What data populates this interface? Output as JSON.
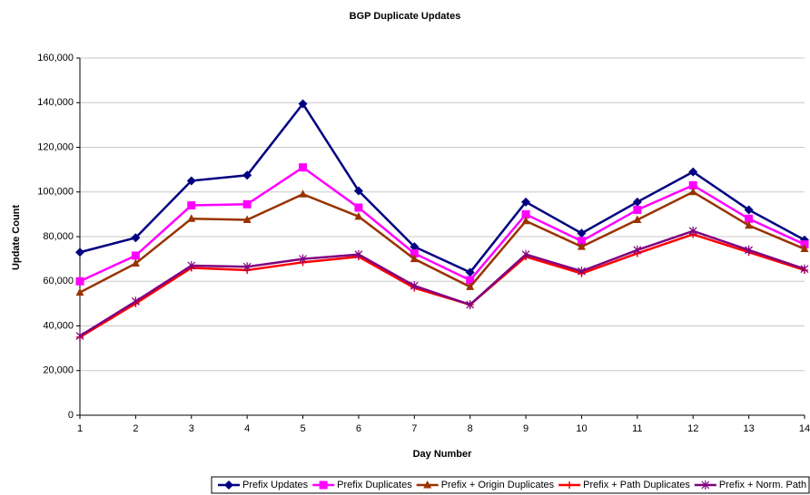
{
  "chart_data": {
    "type": "line",
    "title": "BGP Duplicate Updates",
    "x_label": "Day Number",
    "y_label": "Update Count",
    "x": [
      1,
      2,
      3,
      4,
      5,
      6,
      7,
      8,
      9,
      10,
      11,
      12,
      13,
      14
    ],
    "xlim": [
      1,
      14
    ],
    "xticks": [
      1,
      2,
      3,
      4,
      5,
      6,
      7,
      8,
      9,
      10,
      11,
      12,
      13,
      14
    ],
    "ylim": [
      0,
      160000
    ],
    "yticks": [
      0,
      {
        "value": 20000,
        "label": "20,000"
      },
      {
        "value": 40000,
        "label": "40,000"
      },
      {
        "value": 60000,
        "label": "60,000"
      },
      {
        "value": 80000,
        "label": "80,000"
      },
      {
        "value": 100000,
        "label": "100,000"
      },
      {
        "value": 120000,
        "label": "120,000"
      },
      {
        "value": 140000,
        "label": "140,000"
      },
      {
        "value": 160000,
        "label": "160,000"
      }
    ],
    "grid": true,
    "legend": "bottom",
    "series": [
      {
        "name": "Prefix Updates",
        "color": "#000080",
        "marker": "diamond",
        "values": [
          73000,
          79500,
          105000,
          107500,
          139500,
          100500,
          75500,
          64000,
          95500,
          81500,
          95500,
          109000,
          92000,
          78500
        ]
      },
      {
        "name": "Prefix Duplicates",
        "color": "#ff00ff",
        "marker": "square",
        "values": [
          60000,
          71500,
          94000,
          94500,
          111000,
          93000,
          72500,
          60500,
          90000,
          78000,
          92000,
          103000,
          88000,
          76500
        ]
      },
      {
        "name": "Prefix + Origin Duplicates",
        "color": "#993300",
        "marker": "triangle",
        "values": [
          55000,
          68000,
          88000,
          87500,
          99000,
          89000,
          70000,
          57500,
          87000,
          75500,
          87500,
          100000,
          85000,
          74500
        ]
      },
      {
        "name": "Prefix + Path Duplicates",
        "color": "#ff0000",
        "marker": "plus",
        "values": [
          35000,
          50000,
          66000,
          65000,
          68500,
          71000,
          57000,
          49500,
          71000,
          63500,
          72500,
          81000,
          73000,
          65000
        ]
      },
      {
        "name": "Prefix + Norm. Path Duplicates",
        "color": "#800080",
        "marker": "star",
        "values": [
          35500,
          51000,
          67000,
          66500,
          70000,
          72000,
          58000,
          49500,
          72000,
          64500,
          74000,
          82500,
          74000,
          65500
        ]
      }
    ]
  }
}
